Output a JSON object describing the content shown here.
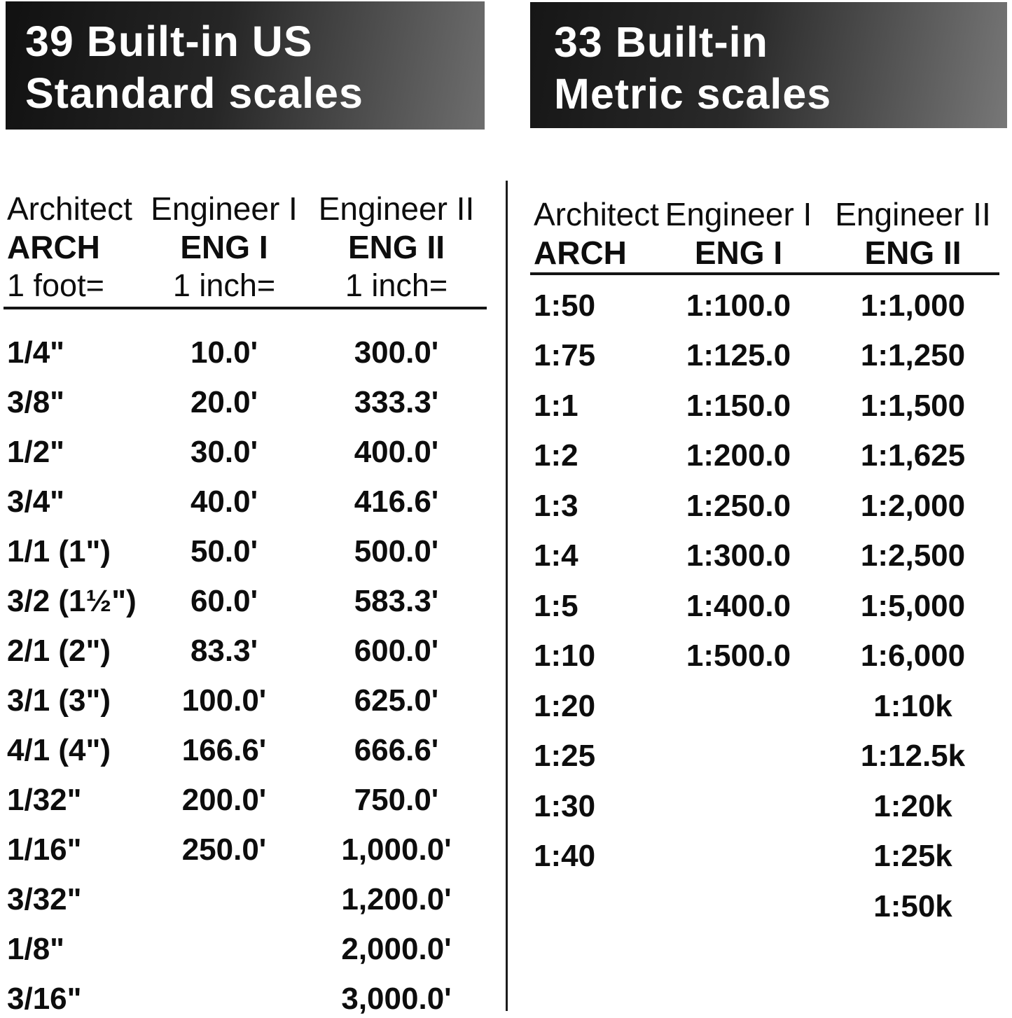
{
  "banners": {
    "us": {
      "line1": "39 Built-in US",
      "line2": "Standard scales",
      "bg_gradient_start": "#111111",
      "bg_gradient_end": "#6e6e6e",
      "text_color": "#ffffff"
    },
    "metric": {
      "line1": "33 Built-in",
      "line2": "Metric scales",
      "bg_gradient_start": "#161616",
      "bg_gradient_end": "#777777",
      "text_color": "#ffffff"
    }
  },
  "us_table": {
    "col_names": [
      "Architect",
      "Engineer I",
      "Engineer II"
    ],
    "col_abbrs": [
      "ARCH",
      "ENG I",
      "ENG II"
    ],
    "col_units": [
      "1 foot=",
      "1 inch=",
      "1 inch="
    ],
    "rows": [
      [
        "1/4\"",
        "10.0'",
        "300.0'"
      ],
      [
        "3/8\"",
        "20.0'",
        "333.3'"
      ],
      [
        "1/2\"",
        "30.0'",
        "400.0'"
      ],
      [
        "3/4\"",
        "40.0'",
        "416.6'"
      ],
      [
        "1/1 (1\")",
        "50.0'",
        "500.0'"
      ],
      [
        "3/2 (1½\")",
        "60.0'",
        "583.3'"
      ],
      [
        "2/1 (2\")",
        "83.3'",
        "600.0'"
      ],
      [
        "3/1 (3\")",
        "100.0'",
        "625.0'"
      ],
      [
        "4/1 (4\")",
        "166.6'",
        "666.6'"
      ],
      [
        "1/32\"",
        "200.0'",
        "750.0'"
      ],
      [
        "1/16\"",
        "250.0'",
        "1,000.0'"
      ],
      [
        "3/32\"",
        "",
        "1,200.0'"
      ],
      [
        "1/8\"",
        "",
        "2,000.0'"
      ],
      [
        "3/16\"",
        "",
        "3,000.0'"
      ]
    ]
  },
  "metric_table": {
    "col_names": [
      "Architect",
      "Engineer I",
      "Engineer II"
    ],
    "col_abbrs": [
      "ARCH",
      "ENG I",
      "ENG II"
    ],
    "rows": [
      [
        "1:50",
        "1:100.0",
        "1:1,000"
      ],
      [
        "1:75",
        "1:125.0",
        "1:1,250"
      ],
      [
        "1:1",
        "1:150.0",
        "1:1,500"
      ],
      [
        "1:2",
        "1:200.0",
        "1:1,625"
      ],
      [
        "1:3",
        "1:250.0",
        "1:2,000"
      ],
      [
        "1:4",
        "1:300.0",
        "1:2,500"
      ],
      [
        "1:5",
        "1:400.0",
        "1:5,000"
      ],
      [
        "1:10",
        "1:500.0",
        "1:6,000"
      ],
      [
        "1:20",
        "",
        "1:10k"
      ],
      [
        "1:25",
        "",
        "1:12.5k"
      ],
      [
        "1:30",
        "",
        "1:20k"
      ],
      [
        "1:40",
        "",
        "1:25k"
      ],
      [
        "",
        "",
        "1:50k"
      ]
    ]
  }
}
